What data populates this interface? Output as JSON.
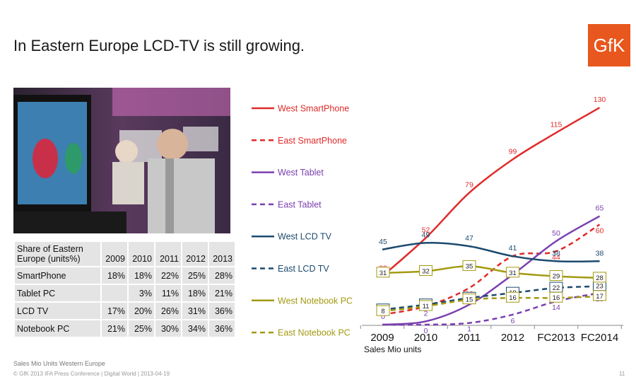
{
  "page": {
    "title": "In Eastern Europe LCD-TV is still growing.",
    "logo_text": "GfK",
    "footnote": "Sales Mio Units Western Europe",
    "copyright": "© GfK 2013 IFA Press Conference | Digital World | 2013-04-19",
    "page_number": "11"
  },
  "share_table": {
    "header_label": "Share of Eastern Europe (units%)",
    "years": [
      "2009",
      "2010",
      "2011",
      "2012",
      "2013"
    ],
    "rows": [
      {
        "label": "SmartPhone",
        "values": [
          "18%",
          "18%",
          "22%",
          "25%",
          "28%"
        ]
      },
      {
        "label": "Tablet PC",
        "values": [
          "",
          "3%",
          "11%",
          "18%",
          "21%"
        ]
      },
      {
        "label": "LCD TV",
        "values": [
          "17%",
          "20%",
          "26%",
          "31%",
          "36%"
        ]
      },
      {
        "label": "Notebook PC",
        "values": [
          "21%",
          "25%",
          "30%",
          "34%",
          "36%"
        ]
      }
    ]
  },
  "chart_data": {
    "type": "line",
    "categories": [
      "2009",
      "2010",
      "2011",
      "2012",
      "FC2013",
      "FC2014"
    ],
    "xlabel": "Sales Mio units",
    "series": [
      {
        "name": "West SmartPhone",
        "color": "#e02a2a",
        "dash": false,
        "values": [
          29,
          52,
          79,
          99,
          115,
          130
        ],
        "labels": [
          "29",
          "52",
          "79",
          "99",
          "115",
          "130"
        ]
      },
      {
        "name": "East SmartPhone",
        "color": "#e02a2a",
        "dash": true,
        "values": [
          6,
          11,
          22,
          41,
          44,
          60
        ],
        "labels": [
          "",
          "",
          "22",
          "",
          "44",
          "60"
        ]
      },
      {
        "name": "West Tablet",
        "color": "#7a3fb0",
        "dash": false,
        "values": [
          0,
          2,
          12,
          30,
          50,
          65
        ],
        "labels": [
          "0",
          "2",
          "12",
          "",
          "50",
          "65"
        ]
      },
      {
        "name": "East Tablet",
        "color": "#7a3fb0",
        "dash": true,
        "values": [
          0,
          0,
          1,
          6,
          14,
          19
        ],
        "labels": [
          "",
          "0",
          "1",
          "6",
          "14",
          "19"
        ]
      },
      {
        "name": "West LCD TV",
        "color": "#1c4a6e",
        "dash": false,
        "values": [
          45,
          49,
          47,
          41,
          38,
          38
        ],
        "labels": [
          "45",
          "49",
          "47",
          "41",
          "38",
          "38"
        ]
      },
      {
        "name": "East LCD TV",
        "color": "#1c4a6e",
        "dash": true,
        "values": [
          9,
          12,
          16,
          19,
          22,
          23
        ],
        "labels": [
          "9",
          "12",
          "16",
          "19",
          "22",
          "23"
        ],
        "boxed": true
      },
      {
        "name": "West Notebook PC",
        "color": "#a39a12",
        "dash": false,
        "values": [
          31,
          32,
          35,
          31,
          29,
          28
        ],
        "labels": [
          "31",
          "32",
          "35",
          "31",
          "29",
          "28"
        ],
        "boxed": true
      },
      {
        "name": "East Notebook PC",
        "color": "#a39a12",
        "dash": true,
        "values": [
          8,
          11,
          15,
          16,
          16,
          17
        ],
        "labels": [
          "8",
          "11",
          "15",
          "16",
          "16",
          "17"
        ],
        "boxed": true
      }
    ]
  }
}
